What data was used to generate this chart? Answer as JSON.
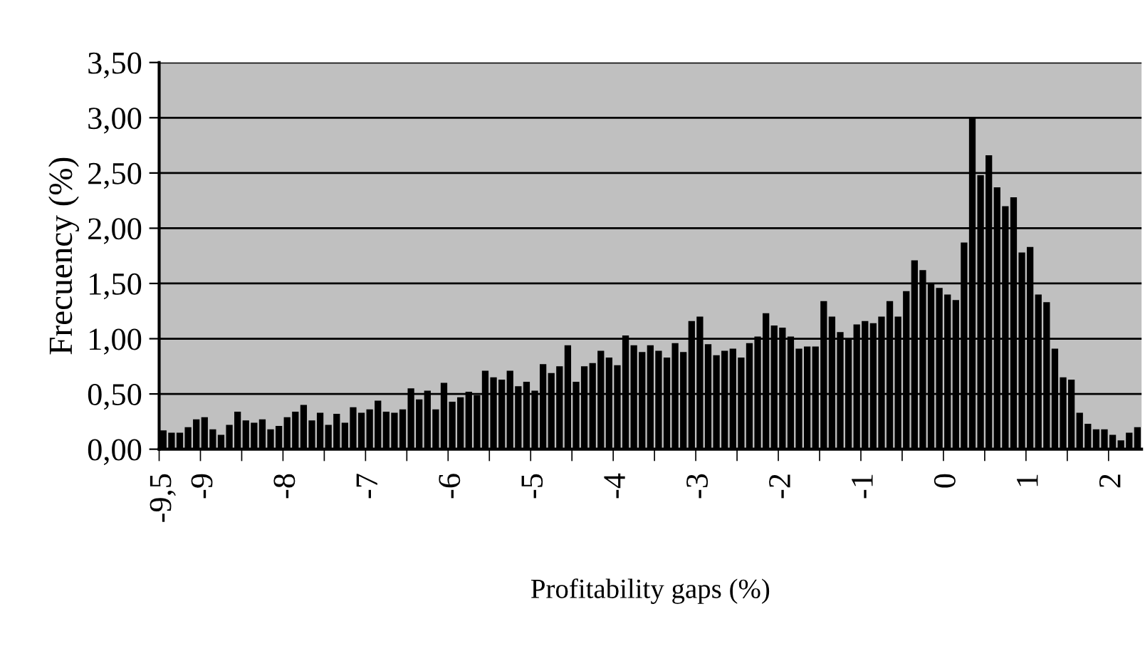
{
  "chart_data": {
    "type": "bar",
    "xlabel": "Profitability gaps (%)",
    "ylabel": "Frecuency (%)",
    "categories": [
      "-9,5",
      null,
      null,
      null,
      null,
      "-9",
      null,
      null,
      null,
      null,
      null,
      null,
      null,
      null,
      null,
      "-8",
      null,
      null,
      null,
      null,
      null,
      null,
      null,
      null,
      null,
      "-7",
      null,
      null,
      null,
      null,
      null,
      null,
      null,
      null,
      null,
      "-6",
      null,
      null,
      null,
      null,
      null,
      null,
      null,
      null,
      null,
      "-5",
      null,
      null,
      null,
      null,
      null,
      null,
      null,
      null,
      null,
      "-4",
      null,
      null,
      null,
      null,
      null,
      null,
      null,
      null,
      null,
      "-3",
      null,
      null,
      null,
      null,
      null,
      null,
      null,
      null,
      null,
      "-2",
      null,
      null,
      null,
      null,
      null,
      null,
      null,
      null,
      null,
      "-1",
      null,
      null,
      null,
      null,
      null,
      null,
      null,
      null,
      null,
      "0",
      null,
      null,
      null,
      null,
      null,
      null,
      null,
      null,
      null,
      "1",
      null,
      null,
      null,
      null,
      null,
      null,
      null,
      null,
      null,
      "2",
      null,
      null,
      null
    ],
    "values": [
      0.17,
      0.15,
      0.15,
      0.2,
      0.27,
      0.29,
      0.18,
      0.13,
      0.22,
      0.34,
      0.26,
      0.24,
      0.27,
      0.18,
      0.21,
      0.29,
      0.34,
      0.4,
      0.26,
      0.33,
      0.22,
      0.32,
      0.24,
      0.38,
      0.33,
      0.36,
      0.44,
      0.34,
      0.33,
      0.36,
      0.55,
      0.45,
      0.53,
      0.36,
      0.6,
      0.43,
      0.47,
      0.52,
      0.49,
      0.71,
      0.65,
      0.63,
      0.71,
      0.57,
      0.61,
      0.53,
      0.77,
      0.69,
      0.75,
      0.94,
      0.61,
      0.75,
      0.78,
      0.89,
      0.83,
      0.76,
      1.03,
      0.94,
      0.88,
      0.94,
      0.89,
      0.83,
      0.96,
      0.88,
      1.16,
      1.2,
      0.95,
      0.85,
      0.89,
      0.91,
      0.83,
      0.96,
      1.02,
      1.23,
      1.12,
      1.1,
      1.02,
      0.91,
      0.93,
      0.93,
      1.34,
      1.2,
      1.06,
      1.0,
      1.13,
      1.16,
      1.14,
      1.2,
      1.34,
      1.2,
      1.43,
      1.71,
      1.62,
      1.5,
      1.46,
      1.4,
      1.35,
      1.87,
      3.0,
      2.48,
      2.66,
      2.37,
      2.2,
      2.28,
      1.78,
      1.83,
      1.4,
      1.33,
      0.91,
      0.65,
      0.63,
      0.33,
      0.23,
      0.18,
      0.18,
      0.13,
      0.08,
      0.15,
      0.2
    ],
    "color": "#000000",
    "ylim": [
      0,
      3.5
    ],
    "yticks": [
      {
        "value": 0,
        "label": "0,00"
      },
      {
        "value": 0.5,
        "label": "0,50"
      },
      {
        "value": 1,
        "label": "1,00"
      },
      {
        "value": 1.5,
        "label": "1,50"
      },
      {
        "value": 2,
        "label": "2,00"
      },
      {
        "value": 2.5,
        "label": "2,50"
      },
      {
        "value": 3,
        "label": "3,00"
      },
      {
        "value": 3.5,
        "label": "3,50"
      }
    ],
    "grid": "y"
  }
}
